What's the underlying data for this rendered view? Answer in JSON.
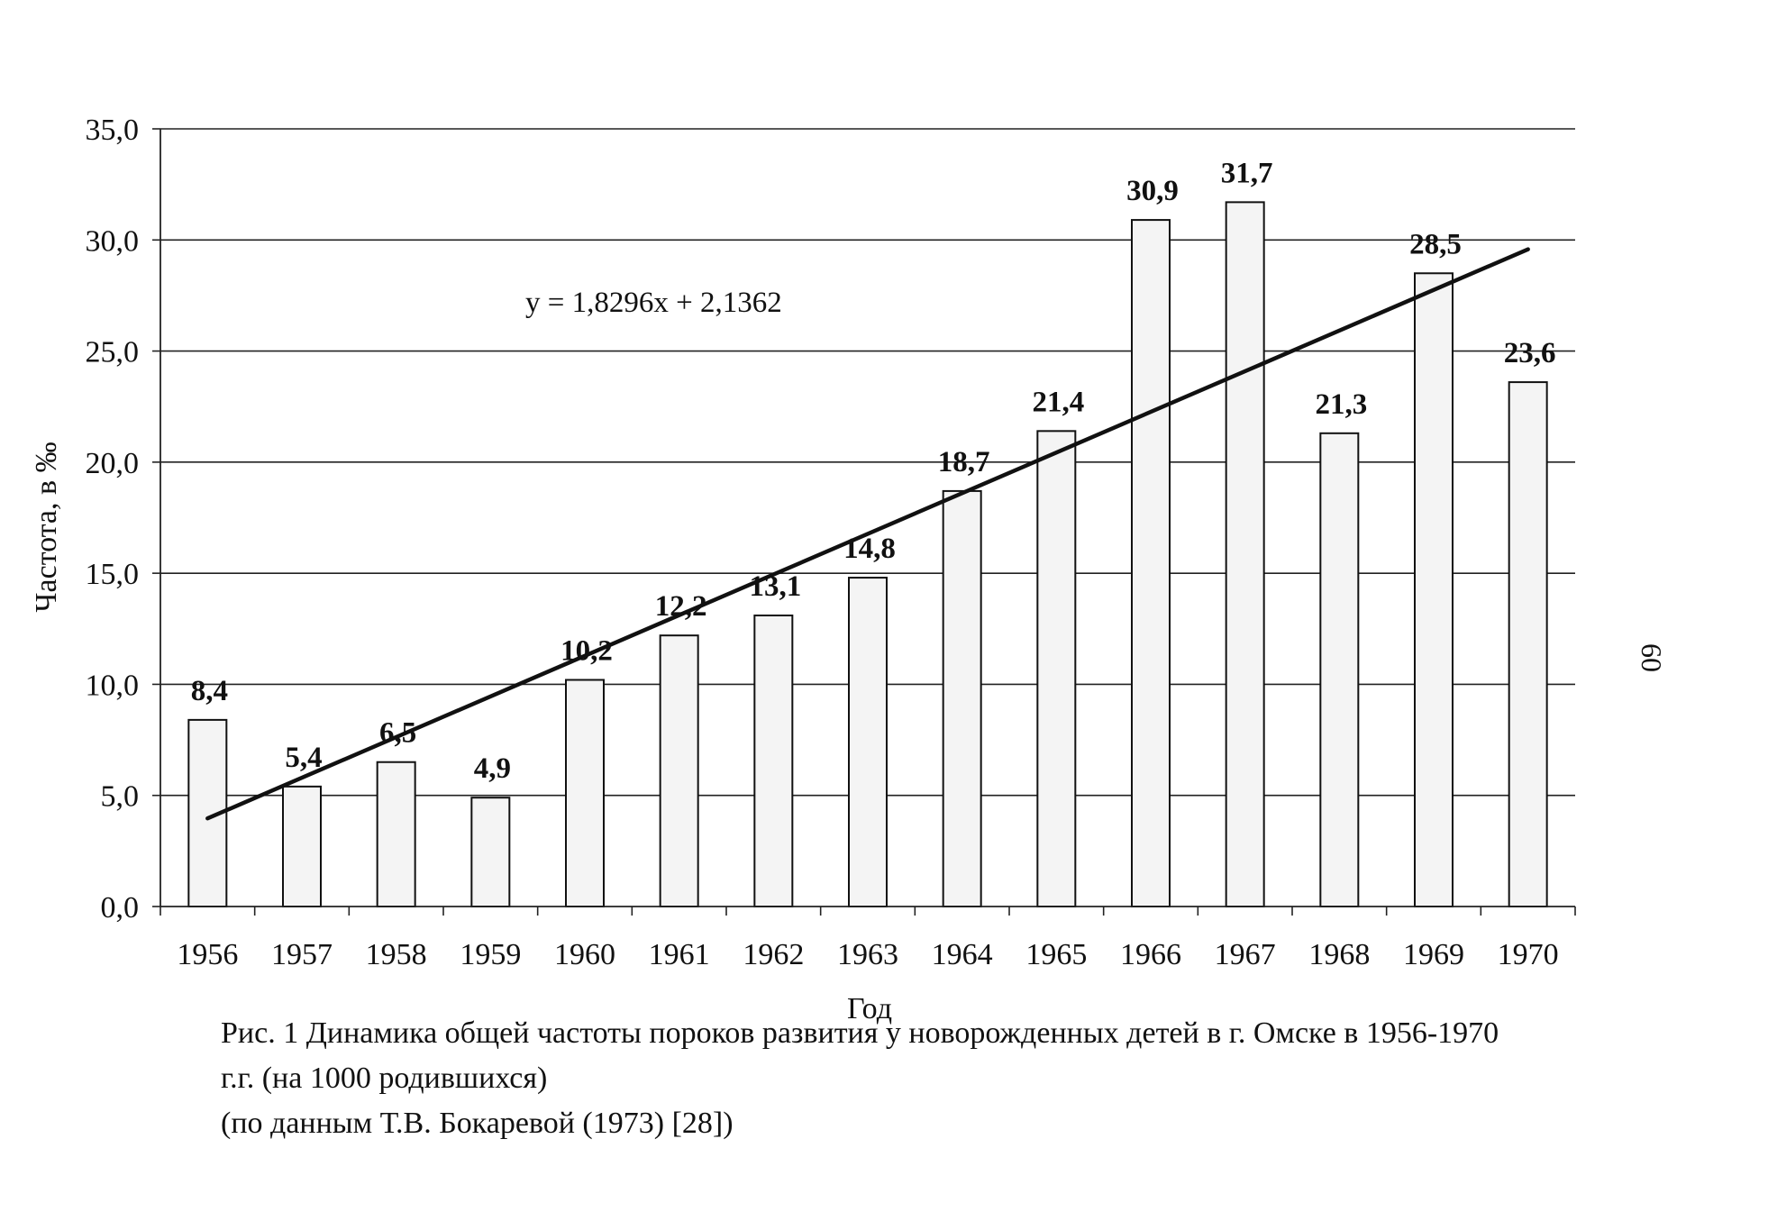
{
  "chart_data": {
    "type": "bar",
    "categories": [
      "1956",
      "1957",
      "1958",
      "1959",
      "1960",
      "1961",
      "1962",
      "1963",
      "1964",
      "1965",
      "1966",
      "1967",
      "1968",
      "1969",
      "1970"
    ],
    "values": [
      8.4,
      5.4,
      6.5,
      4.9,
      10.2,
      12.2,
      13.1,
      14.8,
      18.7,
      21.4,
      30.9,
      31.7,
      21.3,
      28.5,
      23.6
    ],
    "data_labels": [
      "8,4",
      "5,4",
      "6,5",
      "4,9",
      "10,2",
      "12,2",
      "13,1",
      "14,8",
      "18,7",
      "21,4",
      "30,9",
      "31,7",
      "21,3",
      "28,5",
      "23,6"
    ],
    "ylim": [
      0,
      35
    ],
    "yticks": [
      0,
      5,
      10,
      15,
      20,
      25,
      30,
      35
    ],
    "ytick_labels": [
      "0,0",
      "5,0",
      "10,0",
      "15,0",
      "20,0",
      "25,0",
      "30,0",
      "35,0"
    ],
    "xlabel": "Год",
    "ylabel": "Частота, в ‰",
    "grid": true,
    "trendline": {
      "type": "linear",
      "slope": 1.8296,
      "intercept": 2.1362,
      "equation": "y = 1,8296x + 2,1362"
    },
    "bar_fill": "#f4f4f4",
    "bar_stroke": "#111111"
  },
  "caption": {
    "line1": "Рис. 1   Динамика общей частоты пороков развития у новорожденных детей в г. Омске в 1956-1970",
    "line2a": "г.г. (на 1000 родившихся)",
    "line2b": "(по данным Т.В. Бокаревой (1973) [28])"
  },
  "page_number": "60"
}
